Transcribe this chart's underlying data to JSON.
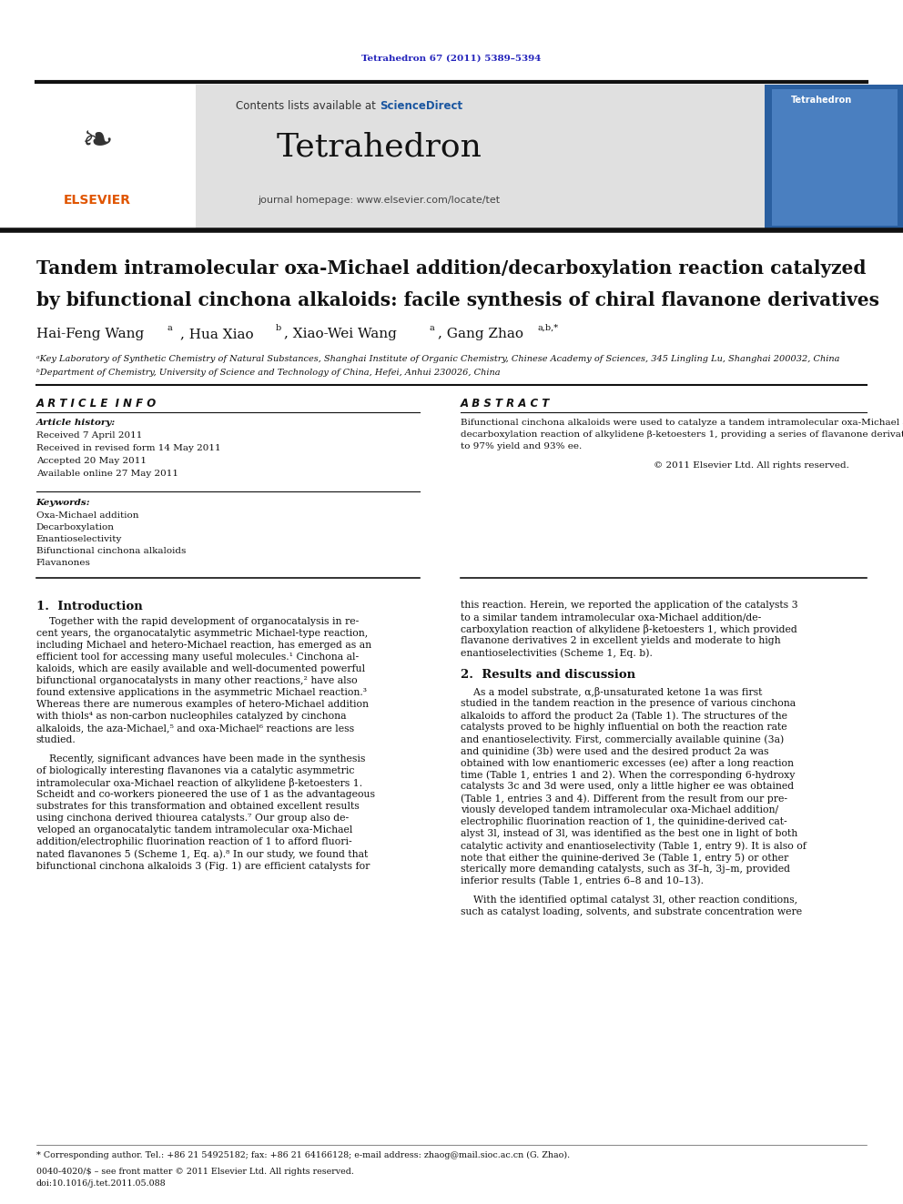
{
  "page_width": 9.92,
  "page_height": 13.23,
  "dpi": 100,
  "bg_color": "#ffffff",
  "top_citation": "Tetrahedron 67 (2011) 5389–5394",
  "top_citation_color": "#2222bb",
  "header_bg": "#e0e0e0",
  "header_contents_text": "Contents lists available at ",
  "header_sciencedirect": "ScienceDirect",
  "header_sciencedirect_color": "#1a56a0",
  "journal_name": "Tetrahedron",
  "journal_homepage": "journal homepage: www.elsevier.com/locate/tet",
  "article_title_line1": "Tandem intramolecular oxa-Michael addition/decarboxylation reaction catalyzed",
  "article_title_line2": "by bifunctional cinchona alkaloids: facile synthesis of chiral flavanone derivatives",
  "authors_plain": "Hai-Feng Wang",
  "authors_sup1": "a",
  "authors_2": ", Hua Xiao",
  "authors_sup2": "b",
  "authors_3": ", Xiao-Wei Wang",
  "authors_sup3": "a",
  "authors_4": ", Gang Zhao",
  "authors_sup4": "a,b,*",
  "affiliation_a": "ᵃKey Laboratory of Synthetic Chemistry of Natural Substances, Shanghai Institute of Organic Chemistry, Chinese Academy of Sciences, 345 Lingling Lu, Shanghai 200032, China",
  "affiliation_b": "ᵇDepartment of Chemistry, University of Science and Technology of China, Hefei, Anhui 230026, China",
  "article_info_title": "A R T I C L E  I N F O",
  "abstract_title": "A B S T R A C T",
  "article_history_label": "Article history:",
  "received": "Received 7 April 2011",
  "revised": "Received in revised form 14 May 2011",
  "accepted": "Accepted 20 May 2011",
  "available": "Available online 27 May 2011",
  "keywords_label": "Keywords:",
  "keywords": [
    "Oxa-Michael addition",
    "Decarboxylation",
    "Enantioselectivity",
    "Bifunctional cinchona alkaloids",
    "Flavanones"
  ],
  "abstract_lines": [
    "Bifunctional cinchona alkaloids were used to catalyze a tandem intramolecular oxa-Michael addition/",
    "decarboxylation reaction of alkylidene β-ketoesters 1, providing a series of flavanone derivatives with up",
    "to 97% yield and 93% ee."
  ],
  "copyright": "© 2011 Elsevier Ltd. All rights reserved.",
  "intro_heading": "1.  Introduction",
  "intro_col1_lines": [
    "    Together with the rapid development of organocatalysis in re-",
    "cent years, the organocatalytic asymmetric Michael-type reaction,",
    "including Michael and hetero-Michael reaction, has emerged as an",
    "efficient tool for accessing many useful molecules.¹ Cinchona al-",
    "kaloids, which are easily available and well-documented powerful",
    "bifunctional organocatalysts in many other reactions,² have also",
    "found extensive applications in the asymmetric Michael reaction.³",
    "Whereas there are numerous examples of hetero-Michael addition",
    "with thiols⁴ as non-carbon nucleophiles catalyzed by cinchona",
    "alkaloids, the aza-Michael,⁵ and oxa-Michael⁶ reactions are less",
    "studied.",
    "",
    "    Recently, significant advances have been made in the synthesis",
    "of biologically interesting flavanones via a catalytic asymmetric",
    "intramolecular oxa-Michael reaction of alkylidene β-ketoesters 1.",
    "Scheidt and co-workers pioneered the use of 1 as the advantageous",
    "substrates for this transformation and obtained excellent results",
    "using cinchona derived thiourea catalysts.⁷ Our group also de-",
    "veloped an organocatalytic tandem intramolecular oxa-Michael",
    "addition/electrophilic fluorination reaction of 1 to afford fluori-",
    "nated flavanones 5 (Scheme 1, Eq. a).⁸ In our study, we found that",
    "bifunctional cinchona alkaloids 3 (Fig. 1) are efficient catalysts for"
  ],
  "intro_col2_lines": [
    "this reaction. Herein, we reported the application of the catalysts 3",
    "to a similar tandem intramolecular oxa-Michael addition/de-",
    "carboxylation reaction of alkylidene β-ketoesters 1, which provided",
    "flavanone derivatives 2 in excellent yields and moderate to high",
    "enantioselectivities (Scheme 1, Eq. b)."
  ],
  "results_heading": "2.  Results and discussion",
  "results_col2_lines": [
    "    As a model substrate, α,β-unsaturated ketone 1a was first",
    "studied in the tandem reaction in the presence of various cinchona",
    "alkaloids to afford the product 2a (Table 1). The structures of the",
    "catalysts proved to be highly influential on both the reaction rate",
    "and enantioselectivity. First, commercially available quinine (3a)",
    "and quinidine (3b) were used and the desired product 2a was",
    "obtained with low enantiomeric excesses (ee) after a long reaction",
    "time (Table 1, entries 1 and 2). When the corresponding 6-hydroxy",
    "catalysts 3c and 3d were used, only a little higher ee was obtained",
    "(Table 1, entries 3 and 4). Different from the result from our pre-",
    "viously developed tandem intramolecular oxa-Michael addition/",
    "electrophilic fluorination reaction of 1, the quinidine-derived cat-",
    "alyst 3l, instead of 3l, was identified as the best one in light of both",
    "catalytic activity and enantioselectivity (Table 1, entry 9). It is also of",
    "note that either the quinine-derived 3e (Table 1, entry 5) or other",
    "sterically more demanding catalysts, such as 3f–h, 3j–m, provided",
    "inferior results (Table 1, entries 6–8 and 10–13).",
    "",
    "    With the identified optimal catalyst 3l, other reaction conditions,",
    "such as catalyst loading, solvents, and substrate concentration were"
  ],
  "footer_line1": "* Corresponding author. Tel.: +86 21 54925182; fax: +86 21 64166128; e-mail address: zhaog@mail.sioc.ac.cn (G. Zhao).",
  "footer_line2": "",
  "footer_line3": "0040-4020/$ – see front matter © 2011 Elsevier Ltd. All rights reserved.",
  "footer_line4": "doi:10.1016/j.tet.2011.05.088"
}
